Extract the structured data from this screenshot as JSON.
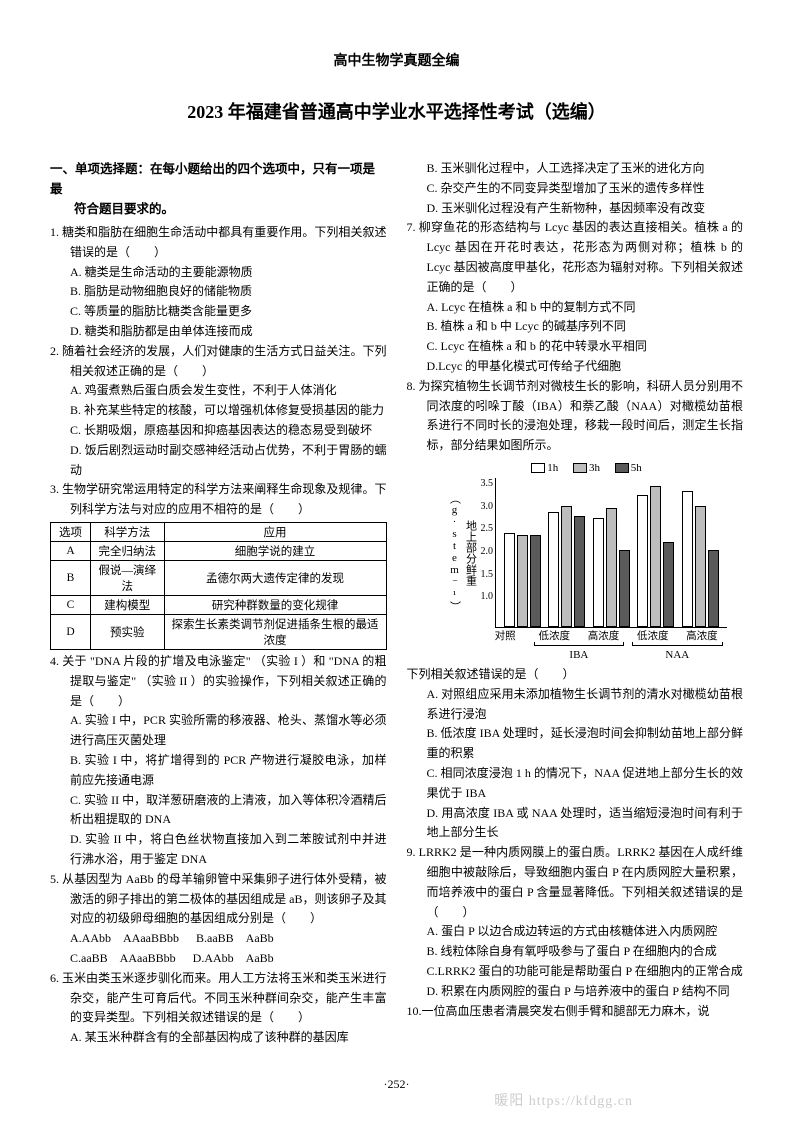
{
  "header_top": "高中生物学真题全编",
  "title_main": "2023 年福建省普通高中学业水平选择性考试（选编）",
  "section1_head_a": "一、单项选择题：在每小题给出的四个选项中，只有一项是最",
  "section1_head_b": "符合题目要求的。",
  "q1": {
    "stem": "1. 糖类和脂肪在细胞生命活动中都具有重要作用。下列相关叙述错误的是（　　）",
    "A": "A. 糖类是生命活动的主要能源物质",
    "B": "B. 脂肪是动物细胞良好的储能物质",
    "C": "C. 等质量的脂肪比糖类含能量更多",
    "D": "D. 糖类和脂肪都是由单体连接而成"
  },
  "q2": {
    "stem": "2. 随着社会经济的发展，人们对健康的生活方式日益关注。下列相关叙述正确的是（　　）",
    "A": "A. 鸡蛋煮熟后蛋白质会发生变性，不利于人体消化",
    "B": "B. 补充某些特定的核酸，可以增强机体修复受损基因的能力",
    "C": "C. 长期吸烟，原癌基因和抑癌基因表达的稳态易受到破坏",
    "D": "D. 饭后剧烈运动时副交感神经活动占优势，不利于胃肠的蠕动"
  },
  "q3": {
    "stem": "3. 生物学研究常运用特定的科学方法来阐释生命现象及规律。下列科学方法与对应的应用不相符的是（　　）",
    "th1": "选项",
    "th2": "科学方法",
    "th3": "应用",
    "rows": [
      {
        "o": "A",
        "m": "完全归纳法",
        "a": "细胞学说的建立"
      },
      {
        "o": "B",
        "m": "假说—演绎法",
        "a": "孟德尔两大遗传定律的发现"
      },
      {
        "o": "C",
        "m": "建构模型",
        "a": "研究种群数量的变化规律"
      },
      {
        "o": "D",
        "m": "预实验",
        "a": "探索生长素类调节剂促进插条生根的最适浓度"
      }
    ]
  },
  "q4": {
    "stem": "4. 关于 \"DNA 片段的扩增及电泳鉴定\" （实验 I ）和 \"DNA 的粗提取与鉴定\" （实验 II ）的实验操作，下列相关叙述正确的是（　　）",
    "A": "A. 实验 I 中，PCR 实验所需的移液器、枪头、蒸馏水等必须进行高压灭菌处理",
    "B": "B. 实验 I 中，将扩增得到的 PCR 产物进行凝胶电泳，加样前应先接通电源",
    "C": "C. 实验 II 中，取洋葱研磨液的上清液，加入等体积冷酒精后析出粗提取的 DNA",
    "D": "D. 实验 II 中，将白色丝状物直接加入到二苯胺试剂中并进行沸水浴，用于鉴定 DNA"
  },
  "q5": {
    "stem": "5. 从基因型为 AaBb 的母羊输卵管中采集卵子进行体外受精，被激活的卵子排出的第二极体的基因组成是 aB，则该卵子及其对应的初级卵母细胞的基因组成分别是（　　）",
    "A": "A.AAbb　AAaaBBbb",
    "B": "B.aaBB　AaBb",
    "C": "C.aaBB　AAaaBBbb",
    "D": "D.AAbb　AaBb"
  },
  "q6": {
    "stem": "6. 玉米由类玉米逐步驯化而来。用人工方法将玉米和类玉米进行杂交，能产生可育后代。不同玉米种群间杂交，能产生丰富的变异类型。下列相关叙述错误的是（　　）",
    "A": "A. 某玉米种群含有的全部基因构成了该种群的基因库",
    "B_r": "B. 玉米驯化过程中，人工选择决定了玉米的进化方向",
    "C_r": "C. 杂交产生的不同变异类型增加了玉米的遗传多样性",
    "D_r": "D. 玉米驯化过程没有产生新物种，基因频率没有改变"
  },
  "q7": {
    "stem": "7. 柳穿鱼花的形态结构与 Lcyc 基因的表达直接相关。植株 a 的 Lcyc 基因在开花时表达，花形态为两侧对称；植株 b 的 Lcyc 基因被高度甲基化，花形态为辐射对称。下列相关叙述正确的是（　　）",
    "A": "A. Lcyc 在植株 a 和 b 中的复制方式不同",
    "B": "B. 植株 a 和 b 中 Lcyc 的碱基序列不同",
    "C": "C. Lcyc 在植株 a 和 b 的花中转录水平相同",
    "D": "D.Lcyc 的甲基化模式可传给子代细胞"
  },
  "q8": {
    "stem": "8. 为探究植物生长调节剂对微枝生长的影响，科研人员分别用不同浓度的吲哚丁酸（IBA）和萘乙酸（NAA）对橄榄幼苗根系进行不同时长的浸泡处理，移栽一段时间后，测定生长指标，部分结果如图所示。",
    "legend": [
      "1h",
      "3h",
      "5h"
    ],
    "legend_colors": [
      "#ffffff",
      "#bdbdbd",
      "#5a5a5a"
    ],
    "y_label": "地上部分鲜重（g·stem⁻¹）",
    "y_ticks": [
      "3.5",
      "3.0",
      "2.5",
      "2.0",
      "1.5",
      "1.0",
      ""
    ],
    "x_labels": [
      "对照",
      "低浓度",
      "高浓度",
      "低浓度",
      "高浓度"
    ],
    "x_sections": [
      "IBA",
      "NAA"
    ],
    "groups": [
      {
        "bars": [
          {
            "v": 2.2,
            "c": "#ffffff"
          },
          {
            "v": 2.15,
            "c": "#bdbdbd"
          },
          {
            "v": 2.15,
            "c": "#5a5a5a"
          }
        ]
      },
      {
        "bars": [
          {
            "v": 2.7,
            "c": "#ffffff"
          },
          {
            "v": 2.85,
            "c": "#bdbdbd"
          },
          {
            "v": 2.6,
            "c": "#5a5a5a"
          }
        ]
      },
      {
        "bars": [
          {
            "v": 2.55,
            "c": "#ffffff"
          },
          {
            "v": 2.8,
            "c": "#bdbdbd"
          },
          {
            "v": 1.8,
            "c": "#5a5a5a"
          }
        ]
      },
      {
        "bars": [
          {
            "v": 3.1,
            "c": "#ffffff"
          },
          {
            "v": 3.3,
            "c": "#bdbdbd"
          },
          {
            "v": 2.0,
            "c": "#5a5a5a"
          }
        ]
      },
      {
        "bars": [
          {
            "v": 3.2,
            "c": "#ffffff"
          },
          {
            "v": 2.85,
            "c": "#bdbdbd"
          },
          {
            "v": 1.8,
            "c": "#5a5a5a"
          }
        ]
      }
    ],
    "y_max": 3.5,
    "after": "下列相关叙述错误的是（　　）",
    "A": "A. 对照组应采用未添加植物生长调节剂的清水对橄榄幼苗根系进行浸泡",
    "B": "B. 低浓度 IBA 处理时，延长浸泡时间会抑制幼苗地上部分鲜重的积累",
    "C": "C. 相同浓度浸泡 1 h 的情况下，NAA 促进地上部分生长的效果优于 IBA",
    "D": "D. 用高浓度 IBA 或 NAA 处理时，适当缩短浸泡时间有利于地上部分生长"
  },
  "q9": {
    "stem": "9. LRRK2 是一种内质网膜上的蛋白质。LRRK2 基因在人成纤维细胞中被敲除后，导致细胞内蛋白 P 在内质网腔大量积累，而培养液中的蛋白 P 含量显著降低。下列相关叙述错误的是（　　）",
    "A": "A. 蛋白 P 以边合成边转运的方式由核糖体进入内质网腔",
    "B": "B. 线粒体除自身有氧呼吸参与了蛋白 P 在细胞内的合成",
    "C": "C.LRRK2 蛋白的功能可能是帮助蛋白 P 在细胞内的正常合成",
    "D": "D. 积累在内质网腔的蛋白 P 与培养液中的蛋白 P 结构不同"
  },
  "q10": {
    "stem": "10.一位高血压患者清晨突发右侧手臂和腿部无力麻木，说"
  },
  "page_num": "·252·",
  "watermark": "暖阳 https://kfdgg.cn"
}
